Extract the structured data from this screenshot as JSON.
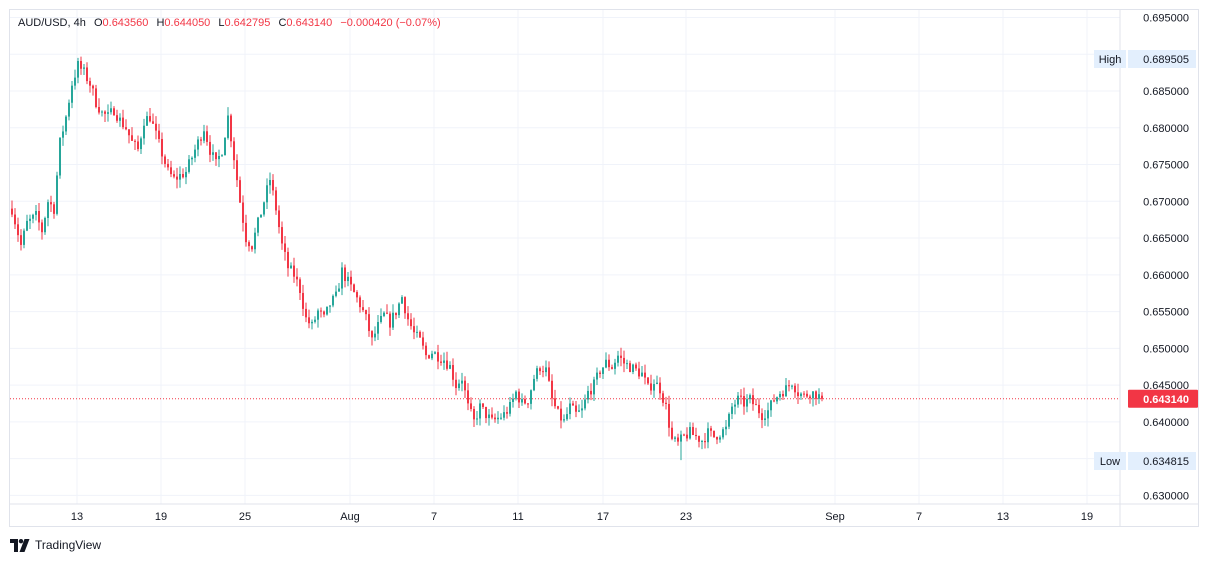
{
  "legend": {
    "symbol": "AUD/USD",
    "interval": "4h",
    "o_label": "O",
    "o_value": "0.643560",
    "h_label": "H",
    "h_value": "0.644050",
    "l_label": "L",
    "l_value": "0.642795",
    "c_label": "C",
    "c_value": "0.643140",
    "change": "−0.000420 (−0.07%)"
  },
  "brand": {
    "name": "TradingView"
  },
  "colors": {
    "up": "#26a69a",
    "down": "#f23645",
    "last_price": "#f23645",
    "grid": "#f0f3fa",
    "text": "#131722",
    "badge_bg": "#e3effd"
  },
  "chart_data": {
    "type": "candlestick",
    "symbol": "AUD/USD",
    "interval": "4h",
    "ylim": [
      0.6295,
      0.6965
    ],
    "y_ticks": [
      "0.695000",
      "0.690000",
      "0.685000",
      "0.680000",
      "0.675000",
      "0.670000",
      "0.665000",
      "0.660000",
      "0.655000",
      "0.650000",
      "0.645000",
      "0.640000",
      "0.635000",
      "0.630000"
    ],
    "x_ticks": [
      "13",
      "19",
      "25",
      "Aug",
      "7",
      "11",
      "17",
      "23",
      "Sep",
      "7",
      "13",
      "19"
    ],
    "grid": true,
    "high": {
      "label": "High",
      "value": "0.689505"
    },
    "low": {
      "label": "Low",
      "value": "0.634815"
    },
    "last_price": {
      "value": "0.643140"
    },
    "close_path": [
      {
        "i": 0,
        "c": 0.669
      },
      {
        "i": 3,
        "c": 0.664
      },
      {
        "i": 5,
        "c": 0.667
      },
      {
        "i": 8,
        "c": 0.668
      },
      {
        "i": 10,
        "c": 0.666
      },
      {
        "i": 12,
        "c": 0.67
      },
      {
        "i": 14,
        "c": 0.669
      },
      {
        "i": 16,
        "c": 0.678
      },
      {
        "i": 18,
        "c": 0.6815
      },
      {
        "i": 20,
        "c": 0.686
      },
      {
        "i": 22,
        "c": 0.6885
      },
      {
        "i": 24,
        "c": 0.6875
      },
      {
        "i": 26,
        "c": 0.686
      },
      {
        "i": 28,
        "c": 0.6835
      },
      {
        "i": 30,
        "c": 0.682
      },
      {
        "i": 32,
        "c": 0.6815
      },
      {
        "i": 34,
        "c": 0.6825
      },
      {
        "i": 36,
        "c": 0.681
      },
      {
        "i": 38,
        "c": 0.68
      },
      {
        "i": 40,
        "c": 0.678
      },
      {
        "i": 42,
        "c": 0.677
      },
      {
        "i": 44,
        "c": 0.681
      },
      {
        "i": 46,
        "c": 0.6815
      },
      {
        "i": 48,
        "c": 0.679
      },
      {
        "i": 50,
        "c": 0.6765
      },
      {
        "i": 52,
        "c": 0.674
      },
      {
        "i": 54,
        "c": 0.673
      },
      {
        "i": 56,
        "c": 0.6735
      },
      {
        "i": 58,
        "c": 0.674
      },
      {
        "i": 60,
        "c": 0.676
      },
      {
        "i": 62,
        "c": 0.678
      },
      {
        "i": 64,
        "c": 0.68
      },
      {
        "i": 66,
        "c": 0.677
      },
      {
        "i": 68,
        "c": 0.675
      },
      {
        "i": 70,
        "c": 0.677
      },
      {
        "i": 72,
        "c": 0.6815
      },
      {
        "i": 74,
        "c": 0.676
      },
      {
        "i": 76,
        "c": 0.67
      },
      {
        "i": 78,
        "c": 0.665
      },
      {
        "i": 80,
        "c": 0.664
      },
      {
        "i": 82,
        "c": 0.667
      },
      {
        "i": 84,
        "c": 0.67
      },
      {
        "i": 86,
        "c": 0.673
      },
      {
        "i": 88,
        "c": 0.669
      },
      {
        "i": 90,
        "c": 0.664
      },
      {
        "i": 92,
        "c": 0.661
      },
      {
        "i": 94,
        "c": 0.66
      },
      {
        "i": 96,
        "c": 0.658
      },
      {
        "i": 98,
        "c": 0.654
      },
      {
        "i": 100,
        "c": 0.653
      },
      {
        "i": 102,
        "c": 0.655
      },
      {
        "i": 104,
        "c": 0.654
      },
      {
        "i": 106,
        "c": 0.656
      },
      {
        "i": 108,
        "c": 0.657
      },
      {
        "i": 110,
        "c": 0.6605
      },
      {
        "i": 112,
        "c": 0.659
      },
      {
        "i": 114,
        "c": 0.6575
      },
      {
        "i": 116,
        "c": 0.656
      },
      {
        "i": 118,
        "c": 0.654
      },
      {
        "i": 120,
        "c": 0.651
      },
      {
        "i": 122,
        "c": 0.653
      },
      {
        "i": 124,
        "c": 0.6545
      },
      {
        "i": 126,
        "c": 0.6535
      },
      {
        "i": 128,
        "c": 0.655
      },
      {
        "i": 130,
        "c": 0.657
      },
      {
        "i": 132,
        "c": 0.654
      },
      {
        "i": 134,
        "c": 0.652
      },
      {
        "i": 136,
        "c": 0.651
      },
      {
        "i": 138,
        "c": 0.649
      },
      {
        "i": 140,
        "c": 0.6495
      },
      {
        "i": 142,
        "c": 0.649
      },
      {
        "i": 144,
        "c": 0.6485
      },
      {
        "i": 146,
        "c": 0.6475
      },
      {
        "i": 148,
        "c": 0.645
      },
      {
        "i": 150,
        "c": 0.646
      },
      {
        "i": 152,
        "c": 0.642
      },
      {
        "i": 154,
        "c": 0.64
      },
      {
        "i": 156,
        "c": 0.642
      },
      {
        "i": 158,
        "c": 0.641
      },
      {
        "i": 160,
        "c": 0.64
      },
      {
        "i": 162,
        "c": 0.6405
      },
      {
        "i": 164,
        "c": 0.641
      },
      {
        "i": 166,
        "c": 0.642
      },
      {
        "i": 168,
        "c": 0.644
      },
      {
        "i": 170,
        "c": 0.6425
      },
      {
        "i": 172,
        "c": 0.643
      },
      {
        "i": 174,
        "c": 0.646
      },
      {
        "i": 176,
        "c": 0.6475
      },
      {
        "i": 178,
        "c": 0.647
      },
      {
        "i": 180,
        "c": 0.643
      },
      {
        "i": 182,
        "c": 0.641
      },
      {
        "i": 184,
        "c": 0.64
      },
      {
        "i": 186,
        "c": 0.642
      },
      {
        "i": 188,
        "c": 0.641
      },
      {
        "i": 190,
        "c": 0.6415
      },
      {
        "i": 192,
        "c": 0.644
      },
      {
        "i": 194,
        "c": 0.645
      },
      {
        "i": 196,
        "c": 0.647
      },
      {
        "i": 198,
        "c": 0.648
      },
      {
        "i": 200,
        "c": 0.6475
      },
      {
        "i": 202,
        "c": 0.649
      },
      {
        "i": 204,
        "c": 0.648
      },
      {
        "i": 206,
        "c": 0.6475
      },
      {
        "i": 208,
        "c": 0.647
      },
      {
        "i": 210,
        "c": 0.6465
      },
      {
        "i": 212,
        "c": 0.6445
      },
      {
        "i": 214,
        "c": 0.6455
      },
      {
        "i": 216,
        "c": 0.6445
      },
      {
        "i": 218,
        "c": 0.642
      },
      {
        "i": 220,
        "c": 0.6375
      },
      {
        "i": 222,
        "c": 0.637
      },
      {
        "i": 224,
        "c": 0.638
      },
      {
        "i": 226,
        "c": 0.6385
      },
      {
        "i": 228,
        "c": 0.638
      },
      {
        "i": 230,
        "c": 0.6375
      },
      {
        "i": 232,
        "c": 0.6385
      },
      {
        "i": 234,
        "c": 0.638
      },
      {
        "i": 236,
        "c": 0.6385
      },
      {
        "i": 238,
        "c": 0.639
      },
      {
        "i": 240,
        "c": 0.642
      },
      {
        "i": 242,
        "c": 0.643
      },
      {
        "i": 244,
        "c": 0.6425
      },
      {
        "i": 246,
        "c": 0.643
      },
      {
        "i": 248,
        "c": 0.642
      },
      {
        "i": 250,
        "c": 0.641
      },
      {
        "i": 252,
        "c": 0.6415
      },
      {
        "i": 254,
        "c": 0.643
      },
      {
        "i": 256,
        "c": 0.644
      },
      {
        "i": 258,
        "c": 0.6445
      },
      {
        "i": 260,
        "c": 0.6455
      },
      {
        "i": 262,
        "c": 0.644
      },
      {
        "i": 264,
        "c": 0.6435
      },
      {
        "i": 266,
        "c": 0.644
      },
      {
        "i": 268,
        "c": 0.6438
      },
      {
        "i": 270,
        "c": 0.64314
      }
    ]
  }
}
